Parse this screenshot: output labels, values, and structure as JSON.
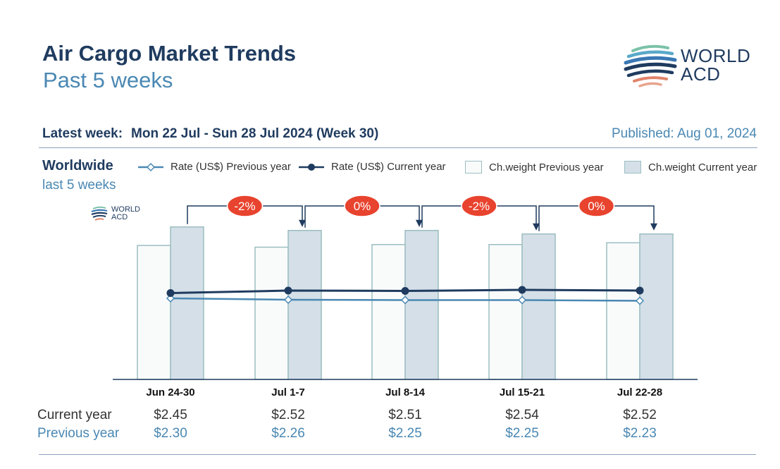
{
  "header": {
    "title": "Air Cargo Market Trends",
    "subtitle": "Past 5 weeks",
    "logo_line1": "WORLD",
    "logo_line2": "ACD"
  },
  "info": {
    "latest_week_label": "Latest week:",
    "latest_week_value": "Mon 22 Jul - Sun 28 Jul 2024 (Week 30)",
    "published": "Published: Aug 01, 2024"
  },
  "section": {
    "region": "Worldwide",
    "period": "last 5 weeks",
    "small_logo_line1": "WORLD",
    "small_logo_line2": "ACD"
  },
  "legend": [
    {
      "label": "Rate (US$) Previous year",
      "kind": "line-prev"
    },
    {
      "label": "Rate (US$) Current year",
      "kind": "line-curr"
    },
    {
      "label": "Ch.weight Previous year",
      "kind": "bar-prev"
    },
    {
      "label": "Ch.weight Current year",
      "kind": "bar-curr"
    }
  ],
  "colors": {
    "navy": "#1f3b5f",
    "light_blue": "#4a88b3",
    "bar_prev_fill": "#f9fbfb",
    "bar_curr_fill": "#d4dfe8",
    "bar_border": "#9cbec0",
    "badge": "#e8432e"
  },
  "chart_data": {
    "type": "bar",
    "categories": [
      "Jun 24-30",
      "Jul 1-7",
      "Jul 8-14",
      "Jul 15-21",
      "Jul 22-28"
    ],
    "series": [
      {
        "name": "Ch.weight Previous year",
        "kind": "bar",
        "values": [
          76,
          75,
          76.5,
          76.5,
          77.5
        ]
      },
      {
        "name": "Ch.weight Current year",
        "kind": "bar",
        "values": [
          86.5,
          84.5,
          84.5,
          82.5,
          82.5
        ]
      },
      {
        "name": "Rate (US$) Previous year",
        "kind": "line",
        "values": [
          2.3,
          2.26,
          2.25,
          2.25,
          2.23
        ]
      },
      {
        "name": "Rate (US$) Current year",
        "kind": "line",
        "values": [
          2.45,
          2.52,
          2.51,
          2.54,
          2.52
        ]
      }
    ],
    "week_changes": [
      "-2%",
      "0%",
      "-2%",
      "0%"
    ],
    "bar_ylim": [
      0,
      100
    ],
    "rate_ylim": [
      0,
      5
    ],
    "grid": false,
    "legend_position": "top"
  },
  "table": {
    "current_label": "Current year",
    "previous_label": "Previous year",
    "current_values": [
      "$2.45",
      "$2.52",
      "$2.51",
      "$2.54",
      "$2.52"
    ],
    "previous_values": [
      "$2.30",
      "$2.26",
      "$2.25",
      "$2.25",
      "$2.23"
    ]
  }
}
